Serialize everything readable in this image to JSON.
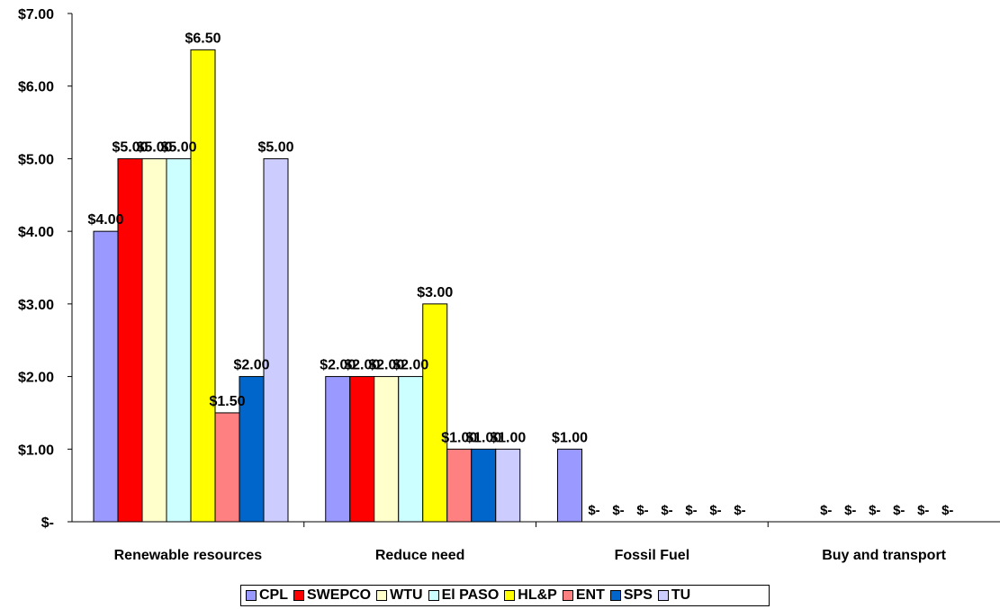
{
  "chart_data": {
    "type": "bar",
    "categories": [
      "Renewable resources",
      "Reduce need",
      "Fossil Fuel",
      "Buy and transport"
    ],
    "ylim": [
      0,
      7
    ],
    "yticks": [
      {
        "value": 7,
        "label": "$7.00"
      },
      {
        "value": 6,
        "label": "$6.00"
      },
      {
        "value": 5,
        "label": "$5.00"
      },
      {
        "value": 4,
        "label": "$4.00"
      },
      {
        "value": 3,
        "label": "$3.00"
      },
      {
        "value": 2,
        "label": "$2.00"
      },
      {
        "value": 1,
        "label": "$1.00"
      },
      {
        "value": 0,
        "label": "$-"
      }
    ],
    "grid": false,
    "legend_position": "bottom",
    "series": [
      {
        "name": "CPL",
        "color": "#9999ff",
        "values": [
          4.0,
          2.0,
          1.0,
          null
        ],
        "labels": [
          "$4.00",
          "$2.00",
          "$1.00",
          ""
        ]
      },
      {
        "name": "SWEPCO",
        "color": "#ff0000",
        "values": [
          5.0,
          2.0,
          0,
          0
        ],
        "labels": [
          "$5.00",
          "$2.00",
          "$-",
          "$-"
        ]
      },
      {
        "name": "WTU",
        "color": "#ffffcc",
        "values": [
          5.0,
          2.0,
          0,
          0
        ],
        "labels": [
          "$5.00",
          "$2.00",
          "$-",
          "$-"
        ]
      },
      {
        "name": "El PASO",
        "color": "#ccffff",
        "values": [
          5.0,
          2.0,
          0,
          0
        ],
        "labels": [
          "$5.00",
          "$2.00",
          "$-",
          "$-"
        ]
      },
      {
        "name": "HL&P",
        "color": "#ffff00",
        "values": [
          6.5,
          3.0,
          0,
          0
        ],
        "labels": [
          "$6.50",
          "$3.00",
          "$-",
          "$-"
        ]
      },
      {
        "name": "ENT",
        "color": "#ff8080",
        "values": [
          1.5,
          1.0,
          0,
          0
        ],
        "labels": [
          "$1.50",
          "$1.00",
          "$-",
          "$-"
        ]
      },
      {
        "name": "SPS",
        "color": "#0066cc",
        "values": [
          2.0,
          1.0,
          0,
          0
        ],
        "labels": [
          "$2.00",
          "$1.00",
          "$-",
          "$-"
        ]
      },
      {
        "name": "TU",
        "color": "#ccccff",
        "values": [
          5.0,
          1.0,
          0,
          null
        ],
        "labels": [
          "$5.00",
          "$1.00",
          "$-",
          ""
        ]
      }
    ]
  }
}
